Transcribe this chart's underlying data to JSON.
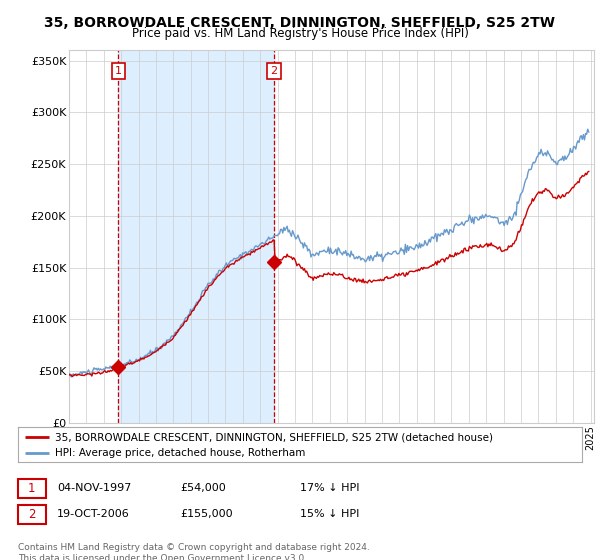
{
  "title": "35, BORROWDALE CRESCENT, DINNINGTON, SHEFFIELD, S25 2TW",
  "subtitle": "Price paid vs. HM Land Registry's House Price Index (HPI)",
  "ylabel_ticks": [
    "£0",
    "£50K",
    "£100K",
    "£150K",
    "£200K",
    "£250K",
    "£300K",
    "£350K"
  ],
  "ytick_values": [
    0,
    50000,
    100000,
    150000,
    200000,
    250000,
    300000,
    350000
  ],
  "ylim": [
    0,
    360000
  ],
  "xlim_start": 1995.0,
  "xlim_end": 2025.2,
  "sale1_x": 1997.84,
  "sale1_y": 54000,
  "sale1_label": "1",
  "sale2_x": 2006.8,
  "sale2_y": 155000,
  "sale2_label": "2",
  "sale_color": "#cc0000",
  "hpi_color": "#6699cc",
  "vline_color": "#cc0000",
  "shade_color": "#ddeeff",
  "grid_color": "#cccccc",
  "bg_color": "#ffffff",
  "legend_line1": "35, BORROWDALE CRESCENT, DINNINGTON, SHEFFIELD, S25 2TW (detached house)",
  "legend_line2": "HPI: Average price, detached house, Rotherham",
  "annotation1_date": "04-NOV-1997",
  "annotation1_price": "£54,000",
  "annotation1_hpi": "17% ↓ HPI",
  "annotation2_date": "19-OCT-2006",
  "annotation2_price": "£155,000",
  "annotation2_hpi": "15% ↓ HPI",
  "footer": "Contains HM Land Registry data © Crown copyright and database right 2024.\nThis data is licensed under the Open Government Licence v3.0.",
  "title_fontsize": 10,
  "subtitle_fontsize": 8.5
}
